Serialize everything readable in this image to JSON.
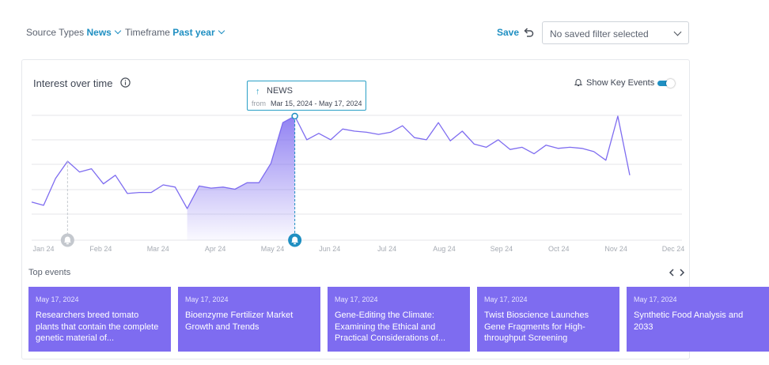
{
  "filters": {
    "source_types_label": "Source Types",
    "source_types_value": "News",
    "timeframe_label": "Timeframe",
    "timeframe_value": "Past year"
  },
  "toolbar": {
    "save_label": "Save",
    "saved_filter_placeholder": "No saved filter selected"
  },
  "chart_panel": {
    "title": "Interest over time",
    "show_key_events_label": "Show Key Events",
    "show_key_events_on": true,
    "accent_color": "#1f8fc2",
    "line_color": "#7e6cf0"
  },
  "tooltip": {
    "source": "NEWS",
    "from_label": "from",
    "range": "Mar 15, 2024 - May 17, 2024"
  },
  "chart_data": {
    "type": "line",
    "x_tick_labels": [
      "Jan 24",
      "Feb 24",
      "Mar 24",
      "Apr 24",
      "May 24",
      "Jun 24",
      "Jul 24",
      "Aug 24",
      "Sep 24",
      "Oct 24",
      "Nov 24",
      "Dec 24"
    ],
    "ylim": [
      0,
      100
    ],
    "grid": true,
    "series": [
      {
        "values": [
          20,
          17,
          42,
          58,
          48,
          51,
          37,
          45,
          28,
          29,
          29,
          36,
          34,
          14,
          35,
          33,
          34,
          32,
          38,
          38,
          56,
          94,
          100,
          78,
          84,
          78,
          88,
          86,
          85,
          83,
          85,
          91,
          80,
          78,
          94,
          77,
          86,
          74,
          71,
          78,
          69,
          71,
          65,
          73,
          70,
          71,
          70,
          67,
          59,
          100,
          45
        ]
      }
    ],
    "highlight_range": {
      "start": "Mar 15, 2024",
      "end": "May 17, 2024"
    },
    "key_events": [
      "Jan 24",
      "May 24"
    ]
  },
  "top_events": {
    "label": "Top events",
    "items": [
      {
        "date": "May 17, 2024",
        "headline": "Researchers breed tomato plants that contain the complete genetic material of..."
      },
      {
        "date": "May 17, 2024",
        "headline": "Bioenzyme Fertilizer Market Growth and Trends"
      },
      {
        "date": "May 17, 2024",
        "headline": "Gene-Editing the Climate: Examining the Ethical and Practical Considerations of..."
      },
      {
        "date": "May 17, 2024",
        "headline": "Twist Bioscience Launches Gene Fragments for High-throughput Screening"
      },
      {
        "date": "May 17, 2024",
        "headline": "Synthetic Food Analysis and 2033"
      }
    ]
  }
}
